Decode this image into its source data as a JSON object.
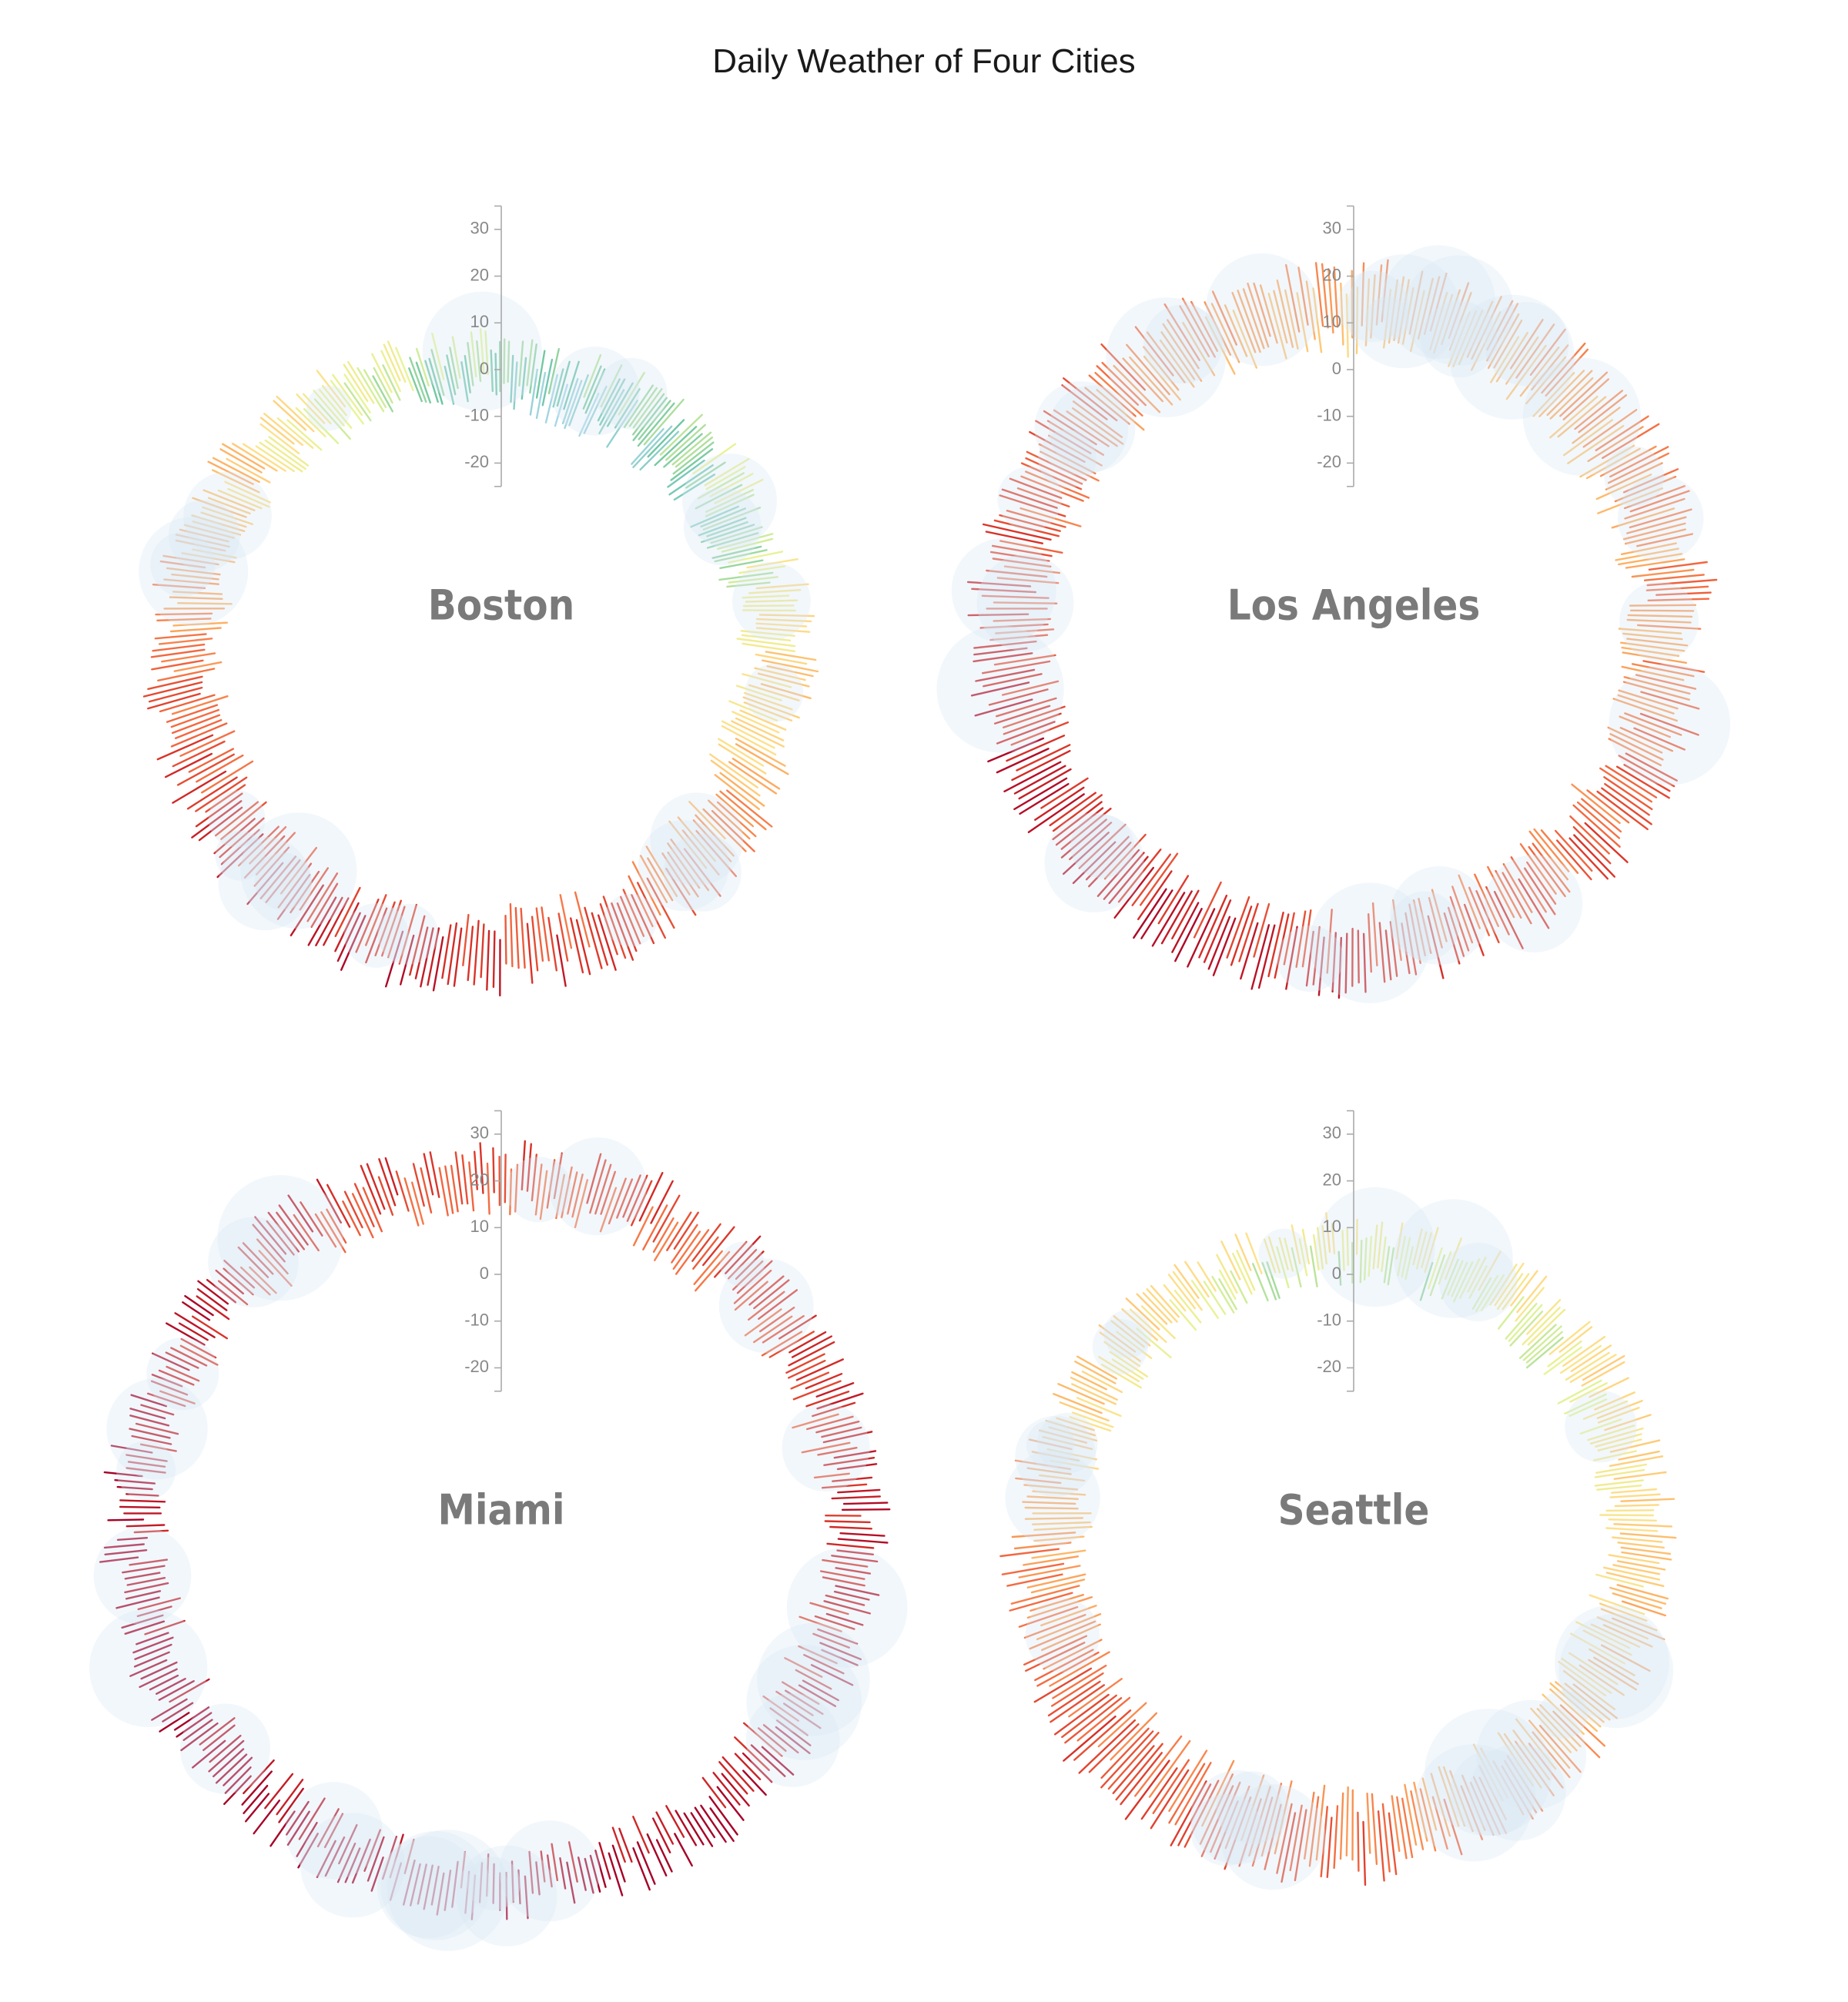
{
  "title": "Daily Weather of Four Cities",
  "colors": {
    "bubble": "#dbe7f3",
    "axis": "#aaaaaa",
    "label": "#7a7a7a",
    "temperature_scale": [
      "#313695",
      "#4575b4",
      "#74add1",
      "#abd9e9",
      "#66c2a5",
      "#e6f598",
      "#fee08b",
      "#fdae61",
      "#f46d43",
      "#d73027",
      "#a50026"
    ]
  },
  "chart_data": [
    {
      "type": "radial",
      "city": "Boston",
      "variable": "daily temperature range (°C) by day of year",
      "axis_ticks": [
        30,
        20,
        10,
        0,
        -10,
        -20
      ],
      "ylim": [
        -25,
        35
      ],
      "monthly_low": [
        -6,
        -5,
        -1,
        5,
        10,
        16,
        19,
        18,
        14,
        8,
        3,
        -2
      ],
      "monthly_high": [
        2,
        4,
        8,
        14,
        20,
        26,
        29,
        28,
        24,
        17,
        11,
        5
      ],
      "precipitation_days": "shown as translucent blue circles along the ring"
    },
    {
      "type": "radial",
      "city": "Los Angeles",
      "variable": "daily temperature range (°C) by day of year",
      "axis_ticks": [
        30,
        20,
        10,
        0,
        -10,
        -20
      ],
      "ylim": [
        -25,
        35
      ],
      "monthly_low": [
        8,
        9,
        10,
        12,
        14,
        16,
        18,
        19,
        18,
        15,
        11,
        8
      ],
      "monthly_high": [
        19,
        20,
        21,
        23,
        24,
        26,
        29,
        30,
        29,
        26,
        22,
        19
      ],
      "precipitation_days": "shown as translucent blue circles along the ring"
    },
    {
      "type": "radial",
      "city": "Miami",
      "variable": "daily temperature range (°C) by day of year",
      "axis_ticks": [
        30,
        20,
        10,
        0,
        -10,
        -20
      ],
      "ylim": [
        -25,
        35
      ],
      "monthly_low": [
        16,
        17,
        19,
        21,
        23,
        25,
        25,
        25,
        25,
        23,
        20,
        17
      ],
      "monthly_high": [
        24,
        25,
        26,
        28,
        30,
        31,
        32,
        32,
        31,
        29,
        27,
        25
      ],
      "precipitation_days": "shown as translucent blue circles along the ring"
    },
    {
      "type": "radial",
      "city": "Seattle",
      "variable": "daily temperature range (°C) by day of year",
      "axis_ticks": [
        30,
        20,
        10,
        0,
        -10,
        -20
      ],
      "ylim": [
        -25,
        35
      ],
      "monthly_low": [
        2,
        2,
        4,
        6,
        8,
        11,
        13,
        13,
        11,
        8,
        4,
        2
      ],
      "monthly_high": [
        8,
        10,
        12,
        15,
        19,
        22,
        26,
        26,
        22,
        16,
        11,
        8
      ],
      "precipitation_days": "shown as translucent blue circles along the ring"
    }
  ]
}
